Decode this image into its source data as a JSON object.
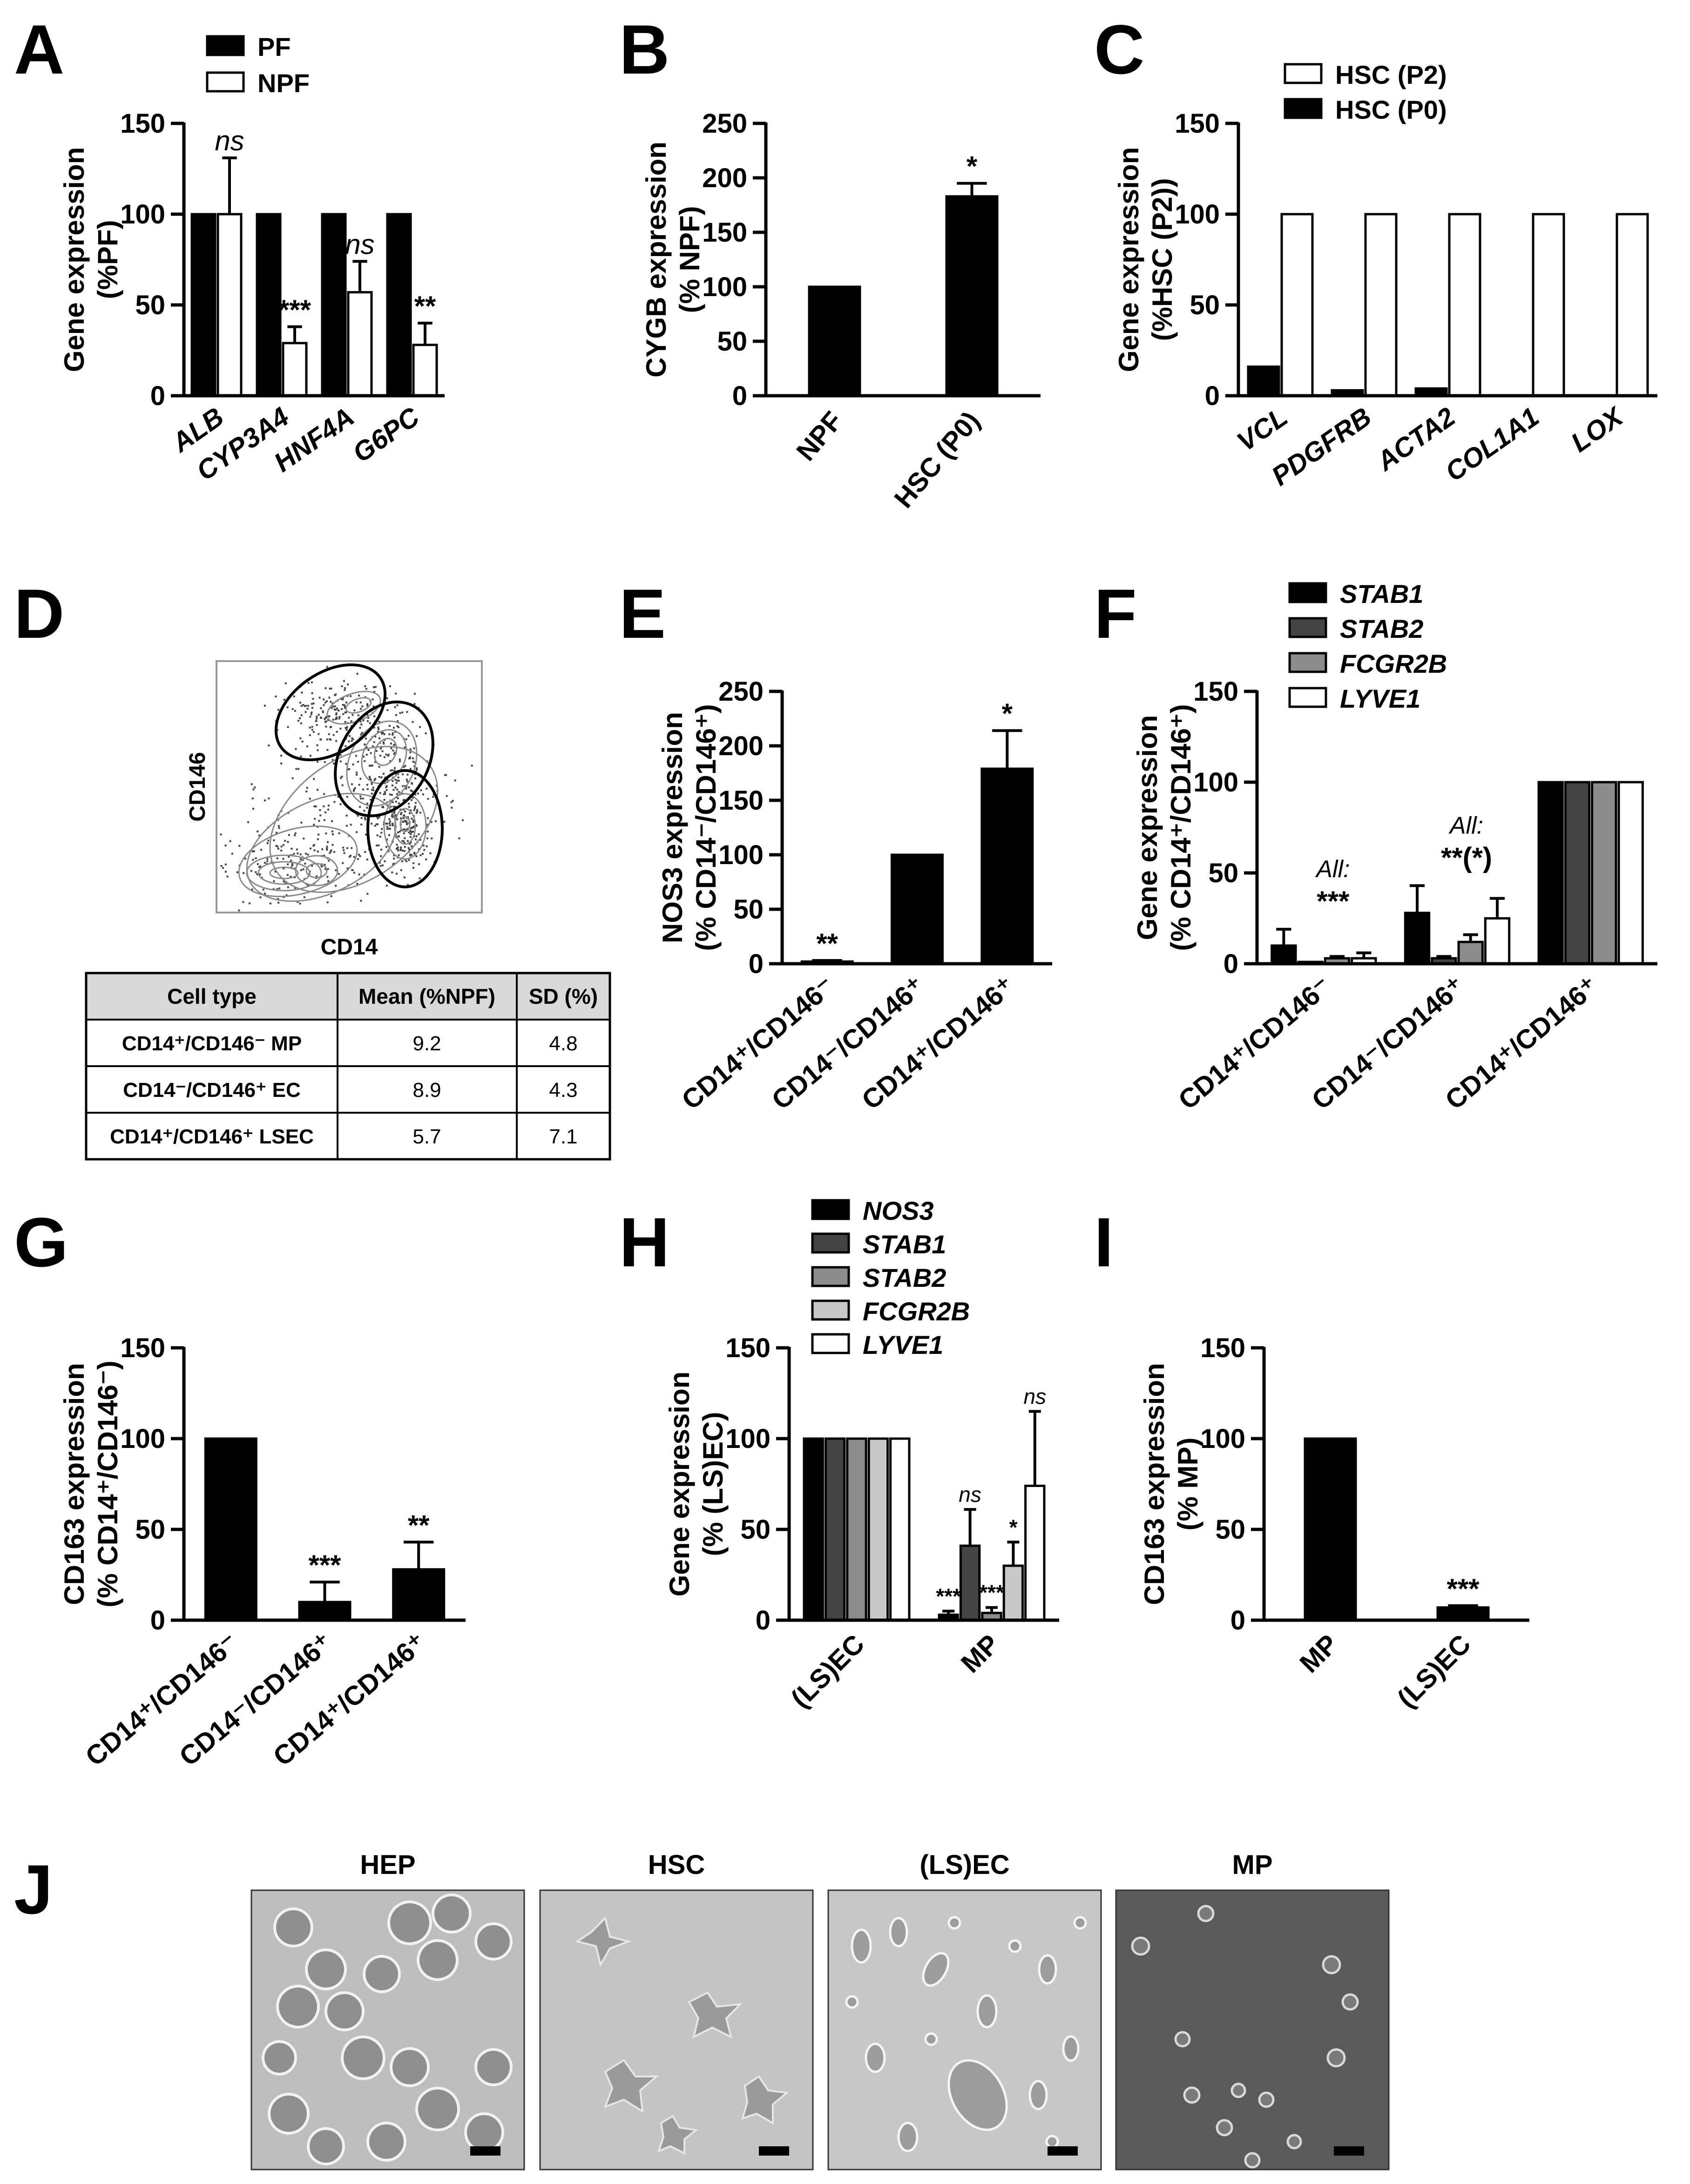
{
  "panel_labels": [
    "A",
    "B",
    "C",
    "D",
    "E",
    "F",
    "G",
    "H",
    "I",
    "J"
  ],
  "chart_data": [
    {
      "id": "A",
      "type": "bar",
      "ylabel_lines": [
        "Gene expression",
        "(%PF)"
      ],
      "ylim": [
        0,
        150
      ],
      "yticks": [
        0,
        50,
        100,
        150
      ],
      "categories": [
        "ALB",
        "CYP3A4",
        "HNF4A",
        "G6PC"
      ],
      "series": [
        {
          "name": "PF",
          "values": [
            100,
            100,
            100,
            100
          ],
          "errors": [
            0,
            0,
            0,
            0
          ]
        },
        {
          "name": "NPF",
          "values": [
            100,
            29,
            57,
            28
          ],
          "errors": [
            31,
            9,
            17,
            12
          ]
        }
      ],
      "annotations": [
        {
          "category": 0,
          "series": 1,
          "text": "ns"
        },
        {
          "category": 1,
          "series": 1,
          "text": "***"
        },
        {
          "category": 2,
          "series": 1,
          "text": "ns"
        },
        {
          "category": 3,
          "series": 1,
          "text": "**"
        }
      ]
    },
    {
      "id": "B",
      "type": "bar",
      "ylabel_lines": [
        "CYGB expression",
        "(% NPF)"
      ],
      "ylim": [
        0,
        250
      ],
      "yticks": [
        0,
        50,
        100,
        150,
        200,
        250
      ],
      "categories": [
        "NPF",
        "HSC (P0)"
      ],
      "series": [
        {
          "name": "CYGB",
          "values": [
            100,
            183
          ],
          "errors": [
            0,
            12
          ]
        }
      ],
      "annotations": [
        {
          "category": 1,
          "series": 0,
          "text": "*"
        }
      ]
    },
    {
      "id": "C",
      "type": "bar",
      "ylabel_lines": [
        "Gene expression",
        "(%HSC (P2))"
      ],
      "ylim": [
        0,
        150
      ],
      "yticks": [
        0,
        50,
        100,
        150
      ],
      "categories": [
        "VCL",
        "PDGFRB",
        "ACTA2",
        "COL1A1",
        "LOX"
      ],
      "series": [
        {
          "name": "HSC (P0)",
          "values": [
            16,
            3,
            4,
            0,
            0
          ]
        },
        {
          "name": "HSC (P2)",
          "values": [
            100,
            100,
            100,
            100,
            100
          ]
        }
      ],
      "legend_order": [
        "HSC (P2)",
        "HSC (P0)"
      ],
      "annotations": []
    },
    {
      "id": "E",
      "type": "bar",
      "ylabel_lines": [
        "NOS3 expression",
        "(% CD14⁻/CD146⁺)"
      ],
      "ylim": [
        0,
        250
      ],
      "yticks": [
        0,
        50,
        100,
        150,
        200,
        250
      ],
      "categories": [
        "CD14⁺/CD146⁻",
        "CD14⁻/CD146⁺",
        "CD14⁺/CD146⁺"
      ],
      "series": [
        {
          "name": "NOS3",
          "values": [
            2,
            100,
            179
          ],
          "errors": [
            1,
            0,
            35
          ]
        }
      ],
      "annotations": [
        {
          "category": 0,
          "series": 0,
          "text": "**"
        },
        {
          "category": 2,
          "series": 0,
          "text": "*"
        }
      ]
    },
    {
      "id": "F",
      "type": "bar",
      "ylabel_lines": [
        "Gene expression",
        "(% CD14⁺/CD146⁺)"
      ],
      "ylim": [
        0,
        150
      ],
      "yticks": [
        0,
        50,
        100,
        150
      ],
      "categories": [
        "CD14⁺/CD146⁻",
        "CD14⁻/CD146⁺",
        "CD14⁺/CD146⁺"
      ],
      "series": [
        {
          "name": "STAB1",
          "values": [
            10,
            28,
            100
          ],
          "errors": [
            9,
            15,
            0
          ]
        },
        {
          "name": "STAB2",
          "values": [
            1,
            3,
            100
          ],
          "errors": [
            0,
            1,
            0
          ]
        },
        {
          "name": "FCGR2B",
          "values": [
            3,
            12,
            100
          ],
          "errors": [
            1,
            4,
            0
          ]
        },
        {
          "name": "LYVE1",
          "values": [
            3,
            25,
            100
          ],
          "errors": [
            3,
            11,
            0
          ]
        }
      ],
      "group_annotations": [
        {
          "category": 0,
          "lines": [
            "All:",
            "***"
          ]
        },
        {
          "category": 1,
          "lines": [
            "All:",
            "**(*)"
          ]
        }
      ]
    },
    {
      "id": "G",
      "type": "bar",
      "ylabel_lines": [
        "CD163 expression",
        "(% CD14⁺/CD146⁻)"
      ],
      "ylim": [
        0,
        150
      ],
      "yticks": [
        0,
        50,
        100,
        150
      ],
      "categories": [
        "CD14⁺/CD146⁻",
        "CD14⁻/CD146⁺",
        "CD14⁺/CD146⁺"
      ],
      "series": [
        {
          "name": "CD163",
          "values": [
            100,
            10,
            28
          ],
          "errors": [
            0,
            11,
            15
          ]
        }
      ],
      "annotations": [
        {
          "category": 1,
          "series": 0,
          "text": "***"
        },
        {
          "category": 2,
          "series": 0,
          "text": "**"
        }
      ]
    },
    {
      "id": "H",
      "type": "bar",
      "ylabel_lines": [
        "Gene expression",
        "(% (LS)EC)"
      ],
      "ylim": [
        0,
        150
      ],
      "yticks": [
        0,
        50,
        100,
        150
      ],
      "categories": [
        "(LS)EC",
        "MP"
      ],
      "series": [
        {
          "name": "NOS3",
          "values": [
            100,
            3
          ],
          "errors": [
            0,
            2
          ]
        },
        {
          "name": "STAB1",
          "values": [
            100,
            41
          ],
          "errors": [
            0,
            20
          ]
        },
        {
          "name": "STAB2",
          "values": [
            100,
            4
          ],
          "errors": [
            0,
            3
          ]
        },
        {
          "name": "FCGR2B",
          "values": [
            100,
            30
          ],
          "errors": [
            0,
            13
          ]
        },
        {
          "name": "LYVE1",
          "values": [
            100,
            74
          ],
          "errors": [
            0,
            41
          ]
        }
      ],
      "annotations": [
        {
          "category": 1,
          "series": 0,
          "text": "***"
        },
        {
          "category": 1,
          "series": 1,
          "text": "ns"
        },
        {
          "category": 1,
          "series": 2,
          "text": "***"
        },
        {
          "category": 1,
          "series": 3,
          "text": "*"
        },
        {
          "category": 1,
          "series": 4,
          "text": "ns"
        }
      ]
    },
    {
      "id": "I",
      "type": "bar",
      "ylabel_lines": [
        "CD163 expression",
        "(% MP)"
      ],
      "ylim": [
        0,
        150
      ],
      "yticks": [
        0,
        50,
        100,
        150
      ],
      "categories": [
        "MP",
        "(LS)EC"
      ],
      "series": [
        {
          "name": "CD163",
          "values": [
            100,
            7
          ],
          "errors": [
            0,
            1
          ]
        }
      ],
      "annotations": [
        {
          "category": 1,
          "series": 0,
          "text": "***"
        }
      ]
    }
  ],
  "flow": {
    "x_label": "CD14",
    "y_label": "CD146"
  },
  "table": {
    "headers": [
      "Cell type",
      "Mean (%NPF)",
      "SD (%)"
    ],
    "rows": [
      [
        "CD14⁺/CD146⁻ MP",
        "9.2",
        "4.8"
      ],
      [
        "CD14⁻/CD146⁺ EC",
        "8.9",
        "4.3"
      ],
      [
        "CD14⁺/CD146⁺ LSEC",
        "5.7",
        "7.1"
      ]
    ]
  },
  "micrographs": [
    "HEP",
    "HSC",
    "(LS)EC",
    "MP"
  ]
}
